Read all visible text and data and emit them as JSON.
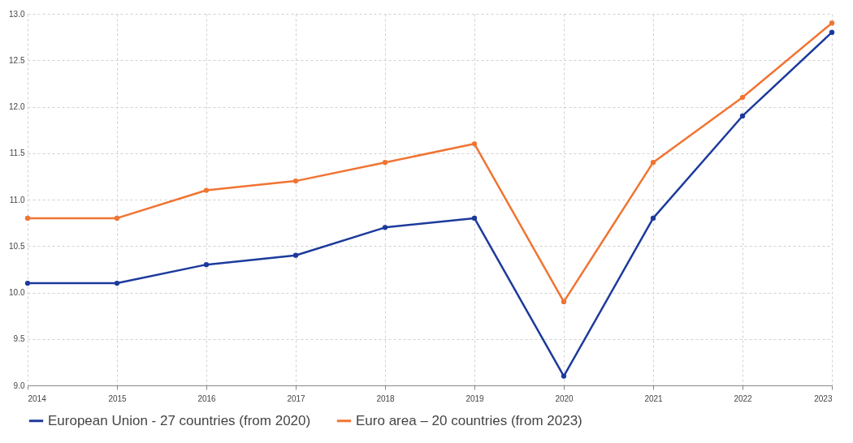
{
  "chart_data": {
    "type": "line",
    "x": [
      2014,
      2015,
      2016,
      2017,
      2018,
      2019,
      2020,
      2021,
      2022,
      2023
    ],
    "series": [
      {
        "name": "European Union - 27 countries (from 2020)",
        "color": "#1c3a9c",
        "values": [
          10.1,
          10.1,
          10.3,
          10.4,
          10.7,
          10.8,
          9.1,
          10.8,
          11.9,
          12.8
        ]
      },
      {
        "name": "Euro area – 20 countries (from 2023)",
        "color": "#f07432",
        "values": [
          10.8,
          10.8,
          11.1,
          11.2,
          11.4,
          11.6,
          9.9,
          11.4,
          12.1,
          12.9
        ]
      }
    ],
    "xlim": [
      2014,
      2023
    ],
    "xticks": [
      2014,
      2015,
      2016,
      2017,
      2018,
      2019,
      2020,
      2021,
      2022,
      2023
    ],
    "ylim": [
      9,
      13
    ],
    "yticks": [
      {
        "value": 9,
        "label": "9.0"
      },
      {
        "value": 9.5,
        "label": "9.5"
      },
      {
        "value": 10,
        "label": "10.0"
      },
      {
        "value": 10.5,
        "label": "10.5"
      },
      {
        "value": 11,
        "label": "11.0"
      },
      {
        "value": 11.5,
        "label": "11.5"
      },
      {
        "value": 12,
        "label": "12.0"
      },
      {
        "value": 12.5,
        "label": "12.5"
      },
      {
        "value": 13,
        "label": "13.0"
      }
    ],
    "grid": true,
    "legend": "bottom left",
    "marker": "circle",
    "line_style": "solid"
  }
}
